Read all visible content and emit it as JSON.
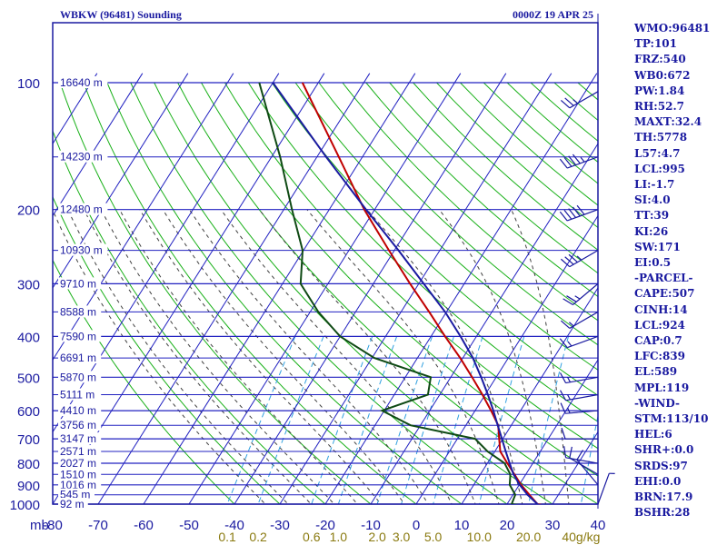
{
  "header": {
    "station": "WBKW (96481) Sounding",
    "datetime": "0000Z 19 APR 25"
  },
  "colors": {
    "frame": "#1a1aa0",
    "isotherm": "#2020c0",
    "dry_adiabat": "#18b018",
    "moist_adiabat": "#404040",
    "mixing_ratio": "#30a0e0",
    "temperature": "#c00000",
    "dewpoint": "#0f4a14",
    "parcel": "#1a1aa0",
    "mixing_label": "#8a7a10"
  },
  "indices": [
    "WMO:96481",
    "TP:101",
    "FRZ:540",
    "WB0:672",
    "PW:1.84",
    "RH:52.7",
    "MAXT:32.4",
    "TH:5778",
    "L57:4.7",
    "LCL:995",
    "LI:-1.7",
    "SI:4.0",
    "TT:39",
    "KI:26",
    "SW:171",
    "EI:0.5",
    "-PARCEL-",
    "CAPE:507",
    "CINH:14",
    "LCL:924",
    "CAP:0.7",
    "LFC:839",
    "EL:589",
    "MPL:119",
    "-WIND-",
    "STM:113/10",
    "HEL:6",
    "SHR+:0.0",
    "SRDS:97",
    "EHI:0.0",
    "BRN:17.9",
    "BSHR:28"
  ],
  "chart_data": {
    "type": "line",
    "chart_kind": "skew-T log-P",
    "title": "WBKW (96481) Sounding",
    "xlabel": "",
    "ylabel": "mb",
    "xlim": [
      -80,
      40
    ],
    "ylim": [
      1000,
      100
    ],
    "y_scale": "log",
    "grid": true,
    "pressure_ticks": [
      100,
      200,
      300,
      400,
      500,
      600,
      700,
      800,
      900,
      1000
    ],
    "temperature_ticks": [
      -80,
      -70,
      -60,
      -50,
      -40,
      -30,
      -20,
      -10,
      0,
      10,
      20,
      30,
      40
    ],
    "height_labels": [
      {
        "p": 100,
        "label": "16640 m"
      },
      {
        "p": 150,
        "label": "14230 m"
      },
      {
        "p": 200,
        "label": "12480 m"
      },
      {
        "p": 250,
        "label": "10930 m"
      },
      {
        "p": 300,
        "label": "9710 m"
      },
      {
        "p": 350,
        "label": "8588 m"
      },
      {
        "p": 400,
        "label": "7590 m"
      },
      {
        "p": 450,
        "label": "6691 m"
      },
      {
        "p": 500,
        "label": "5870 m"
      },
      {
        "p": 550,
        "label": "5111 m"
      },
      {
        "p": 600,
        "label": "4410 m"
      },
      {
        "p": 650,
        "label": "3756 m"
      },
      {
        "p": 700,
        "label": "3147 m"
      },
      {
        "p": 750,
        "label": "2571 m"
      },
      {
        "p": 800,
        "label": "2027 m"
      },
      {
        "p": 850,
        "label": "1510 m"
      },
      {
        "p": 900,
        "label": "1016 m"
      },
      {
        "p": 950,
        "label": "545 m"
      },
      {
        "p": 1000,
        "label": "92 m"
      }
    ],
    "mixing_ratio_labels": [
      "0.1",
      "0.2",
      "0.6",
      "1.0",
      "2.0",
      "3.0",
      "5.0",
      "10.0",
      "20.0",
      "40g/kg"
    ],
    "mixing_ratios": [
      0.1,
      0.2,
      0.6,
      1.0,
      2.0,
      3.0,
      5.0,
      10.0,
      20.0,
      40.0
    ],
    "series": [
      {
        "role": "temperature",
        "points": [
          [
            1008,
            28.4
          ],
          [
            1000,
            26.7
          ],
          [
            950,
            23.6
          ],
          [
            900,
            20.4
          ],
          [
            850,
            17.5
          ],
          [
            800,
            14.4
          ],
          [
            750,
            11.2
          ],
          [
            700,
            9.2
          ],
          [
            650,
            7.1
          ],
          [
            600,
            3.5
          ],
          [
            550,
            -0.6
          ],
          [
            500,
            -5.3
          ],
          [
            450,
            -10.6
          ],
          [
            400,
            -16.9
          ],
          [
            350,
            -23.8
          ],
          [
            300,
            -31.9
          ],
          [
            250,
            -41.2
          ],
          [
            200,
            -52.3
          ],
          [
            150,
            -65.2
          ],
          [
            100,
            -83.5
          ]
        ]
      },
      {
        "role": "dewpoint",
        "points": [
          [
            1008,
            24.0
          ],
          [
            1000,
            21.0
          ],
          [
            950,
            20.5
          ],
          [
            900,
            17.9
          ],
          [
            850,
            16.6
          ],
          [
            800,
            13.8
          ],
          [
            750,
            8.4
          ],
          [
            700,
            3.9
          ],
          [
            650,
            -12.2
          ],
          [
            600,
            -20.5
          ],
          [
            550,
            -12.6
          ],
          [
            500,
            -14.4
          ],
          [
            450,
            -29.5
          ],
          [
            400,
            -40.0
          ],
          [
            350,
            -48.2
          ],
          [
            300,
            -56.0
          ],
          [
            250,
            -60.2
          ],
          [
            200,
            -68.2
          ],
          [
            150,
            -78.1
          ],
          [
            100,
            -93.0
          ]
        ]
      },
      {
        "role": "parcel",
        "points": [
          [
            1008,
            27.2
          ],
          [
            1000,
            26.7
          ],
          [
            950,
            23.2
          ],
          [
            900,
            20.1
          ],
          [
            850,
            17.3
          ],
          [
            800,
            14.9
          ],
          [
            750,
            12.4
          ],
          [
            700,
            9.8
          ],
          [
            650,
            7.0
          ],
          [
            600,
            4.0
          ],
          [
            550,
            0.6
          ],
          [
            500,
            -3.3
          ],
          [
            450,
            -7.8
          ],
          [
            400,
            -13.5
          ],
          [
            350,
            -20.3
          ],
          [
            300,
            -28.9
          ],
          [
            250,
            -39.1
          ],
          [
            200,
            -51.9
          ],
          [
            150,
            -68.0
          ],
          [
            100,
            -90.0
          ]
        ]
      }
    ],
    "wind_barbs": [
      {
        "p": 105,
        "dir": 240,
        "spd": 25
      },
      {
        "p": 150,
        "dir": 250,
        "spd": 45
      },
      {
        "p": 200,
        "dir": 250,
        "spd": 50
      },
      {
        "p": 250,
        "dir": 240,
        "spd": 35
      },
      {
        "p": 300,
        "dir": 230,
        "spd": 25
      },
      {
        "p": 350,
        "dir": 240,
        "spd": 15
      },
      {
        "p": 400,
        "dir": 250,
        "spd": 15
      },
      {
        "p": 500,
        "dir": 260,
        "spd": 15
      },
      {
        "p": 550,
        "dir": 260,
        "spd": 15
      },
      {
        "p": 600,
        "dir": 265,
        "spd": 15
      },
      {
        "p": 700,
        "dir": 270,
        "spd": 10
      },
      {
        "p": 800,
        "dir": 280,
        "spd": 10
      },
      {
        "p": 850,
        "dir": 300,
        "spd": 10
      },
      {
        "p": 900,
        "dir": 320,
        "spd": 10
      },
      {
        "p": 1000,
        "dir": 20,
        "spd": 5
      }
    ]
  }
}
